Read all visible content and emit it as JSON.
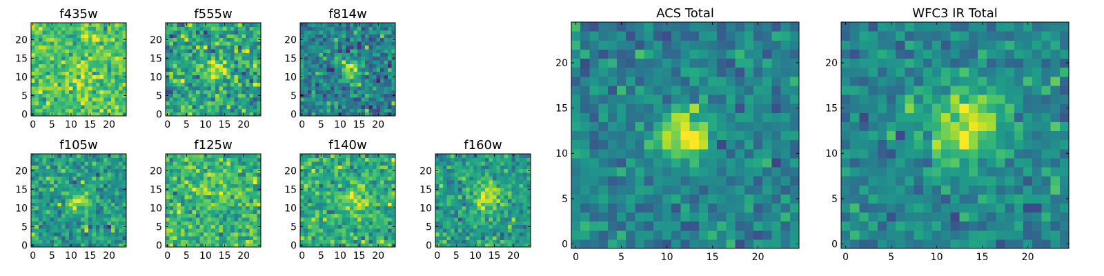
{
  "colormap": "viridis",
  "colors": {
    "low": "#440154",
    "mid": "#21918c",
    "high": "#fde725",
    "frame": "#000000",
    "background": "#ffffff"
  },
  "chart_data": [
    {
      "type": "heatmap",
      "title": "f435w",
      "size": 25,
      "source": {
        "x": 12,
        "y": 11,
        "amp": 0.12,
        "sigma": 2.0
      },
      "base": 0.72,
      "noise": 0.11,
      "seed": 11,
      "xticks": [
        0,
        5,
        10,
        15,
        20
      ],
      "yticks": [
        0,
        5,
        10,
        15,
        20
      ],
      "xlim": [
        -0.5,
        24.5
      ],
      "ylim": [
        -0.5,
        24.5
      ]
    },
    {
      "type": "heatmap",
      "title": "f555w",
      "size": 25,
      "source": {
        "x": 13,
        "y": 12,
        "amp": 0.3,
        "sigma": 1.8
      },
      "base": 0.58,
      "noise": 0.15,
      "seed": 23,
      "xticks": [
        0,
        5,
        10,
        15,
        20
      ],
      "yticks": [
        0,
        5,
        10,
        15,
        20
      ],
      "xlim": [
        -0.5,
        24.5
      ],
      "ylim": [
        -0.5,
        24.5
      ]
    },
    {
      "type": "heatmap",
      "title": "f814w",
      "size": 25,
      "source": {
        "x": 13,
        "y": 12,
        "amp": 0.45,
        "sigma": 1.7
      },
      "base": 0.45,
      "noise": 0.13,
      "seed": 37,
      "xticks": [
        0,
        5,
        10,
        15,
        20
      ],
      "yticks": [
        0,
        5,
        10,
        15,
        20
      ],
      "xlim": [
        -0.5,
        24.5
      ],
      "ylim": [
        -0.5,
        24.5
      ]
    },
    {
      "type": "heatmap",
      "title": "f105w",
      "size": 25,
      "source": {
        "x": 12,
        "y": 12,
        "amp": 0.3,
        "sigma": 2.2
      },
      "base": 0.55,
      "noise": 0.12,
      "seed": 41,
      "xticks": [
        0,
        5,
        10,
        15,
        20
      ],
      "yticks": [
        0,
        5,
        10,
        15,
        20
      ],
      "xlim": [
        -0.5,
        24.5
      ],
      "ylim": [
        -0.5,
        24.5
      ]
    },
    {
      "type": "heatmap",
      "title": "f125w",
      "size": 25,
      "source": {
        "x": 13,
        "y": 13,
        "amp": 0.1,
        "sigma": 2.5
      },
      "base": 0.66,
      "noise": 0.12,
      "seed": 53,
      "xticks": [
        0,
        5,
        10,
        15,
        20
      ],
      "yticks": [
        0,
        5,
        10,
        15,
        20
      ],
      "xlim": [
        -0.5,
        24.5
      ],
      "ylim": [
        -0.5,
        24.5
      ]
    },
    {
      "type": "heatmap",
      "title": "f140w",
      "size": 25,
      "source": {
        "x": 14,
        "y": 12,
        "amp": 0.25,
        "sigma": 2.5
      },
      "base": 0.62,
      "noise": 0.12,
      "seed": 67,
      "xticks": [
        0,
        5,
        10,
        15,
        20
      ],
      "yticks": [
        0,
        5,
        10,
        15,
        20
      ],
      "xlim": [
        -0.5,
        24.5
      ],
      "ylim": [
        -0.5,
        24.5
      ]
    },
    {
      "type": "heatmap",
      "title": "f160w",
      "size": 25,
      "source": {
        "x": 13,
        "y": 13,
        "amp": 0.4,
        "sigma": 2.6
      },
      "base": 0.55,
      "noise": 0.11,
      "seed": 79,
      "xticks": [
        0,
        5,
        10,
        15,
        20
      ],
      "yticks": [
        0,
        5,
        10,
        15,
        20
      ],
      "xlim": [
        -0.5,
        24.5
      ],
      "ylim": [
        -0.5,
        24.5
      ]
    },
    {
      "type": "heatmap",
      "title": "ACS Total",
      "size": 25,
      "source": {
        "x": 12,
        "y": 12,
        "amp": 0.55,
        "sigma": 1.9
      },
      "base": 0.45,
      "noise": 0.1,
      "seed": 83,
      "xticks": [
        0,
        5,
        10,
        15,
        20
      ],
      "yticks": [
        0,
        5,
        10,
        15,
        20
      ],
      "xlim": [
        -0.5,
        24.5
      ],
      "ylim": [
        -0.5,
        24.5
      ]
    },
    {
      "type": "heatmap",
      "title": "WFC3 IR Total",
      "size": 25,
      "source": {
        "x": 13,
        "y": 13,
        "amp": 0.48,
        "sigma": 3.0
      },
      "base": 0.45,
      "noise": 0.1,
      "seed": 97,
      "xticks": [
        0,
        5,
        10,
        15,
        20
      ],
      "yticks": [
        0,
        5,
        10,
        15,
        20
      ],
      "xlim": [
        -0.5,
        24.5
      ],
      "ylim": [
        -0.5,
        24.5
      ]
    }
  ]
}
